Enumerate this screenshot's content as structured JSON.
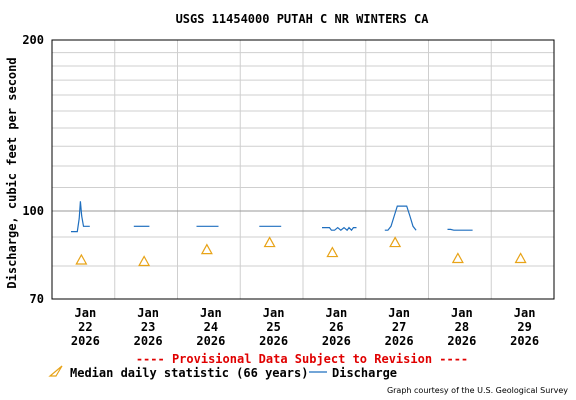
{
  "chart_data": {
    "type": "line",
    "title": "USGS 11454000 PUTAH C NR WINTERS CA",
    "ylabel": "Discharge, cubic feet per second",
    "xlabel": "",
    "y_scale": "log",
    "ylim": [
      70,
      200
    ],
    "y_tick_labels": [
      "200",
      "100",
      "70"
    ],
    "y_ticks": [
      200,
      100,
      70
    ],
    "grid": true,
    "x_tick_labels": [
      {
        "month": "Jan",
        "day": "22",
        "year": "2026"
      },
      {
        "month": "Jan",
        "day": "23",
        "year": "2026"
      },
      {
        "month": "Jan",
        "day": "24",
        "year": "2026"
      },
      {
        "month": "Jan",
        "day": "25",
        "year": "2026"
      },
      {
        "month": "Jan",
        "day": "26",
        "year": "2026"
      },
      {
        "month": "Jan",
        "day": "27",
        "year": "2026"
      },
      {
        "month": "Jan",
        "day": "28",
        "year": "2026"
      },
      {
        "month": "Jan",
        "day": "29",
        "year": "2026"
      }
    ],
    "series": [
      {
        "name": "Discharge",
        "color": "#1f6fbf",
        "x": [
          0.0,
          0.1,
          0.13,
          0.15,
          0.17,
          0.2,
          0.25,
          0.3,
          1.0,
          1.25,
          2.0,
          2.35,
          3.0,
          3.35,
          4.0,
          4.12,
          4.15,
          4.2,
          4.25,
          4.3,
          4.35,
          4.4,
          4.43,
          4.47,
          4.5,
          4.55,
          5.0,
          5.05,
          5.1,
          5.15,
          5.2,
          5.3,
          5.35,
          5.4,
          5.45,
          5.5,
          6.0,
          6.05,
          6.1,
          6.4
        ],
        "y": [
          92,
          92,
          97,
          104,
          98,
          94,
          94,
          94,
          94,
          94,
          94,
          94,
          94,
          94,
          93.5,
          93.5,
          92.5,
          92.5,
          93.5,
          92.5,
          93.5,
          92.5,
          93.5,
          92.5,
          93.5,
          93.5,
          92.5,
          92.5,
          94,
          98,
          102,
          102,
          102,
          98,
          94,
          92.5,
          92.8,
          92.8,
          92.5,
          92.5
        ]
      },
      {
        "name": "Median daily statistic (66 years)",
        "color": "#e8a317",
        "marker": "triangle",
        "x": [
          0,
          1,
          2,
          3,
          4,
          5,
          6,
          7
        ],
        "y": [
          82,
          81.5,
          85.5,
          88,
          84.5,
          88,
          82.5,
          82.5
        ]
      }
    ],
    "legend_placement": "bottom"
  },
  "footer": {
    "provisional_notice": "---- Provisional Data Subject to Revision ----",
    "legend": {
      "median_label": "Median daily statistic (66 years)",
      "discharge_label": "Discharge"
    },
    "credit": "Graph courtesy of the U.S. Geological Survey"
  }
}
